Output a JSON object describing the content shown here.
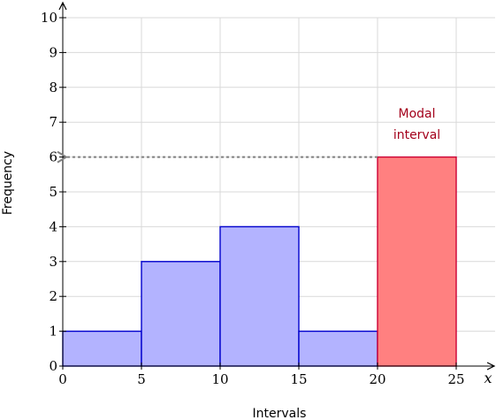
{
  "chart_data": {
    "type": "bar",
    "title": "",
    "xlabel": "Intervals",
    "ylabel": "Frequency",
    "x_axis_symbol": "x",
    "xlim": [
      0,
      25
    ],
    "ylim": [
      0,
      10
    ],
    "grid": true,
    "x_ticks": [
      "0",
      "5",
      "10",
      "15",
      "20",
      "25"
    ],
    "y_ticks": [
      "0",
      "1",
      "2",
      "3",
      "4",
      "5",
      "6",
      "7",
      "8",
      "9",
      "10"
    ],
    "bins": [
      {
        "start": 0,
        "end": 5,
        "value": 1,
        "highlight": false
      },
      {
        "start": 5,
        "end": 10,
        "value": 3,
        "highlight": false
      },
      {
        "start": 10,
        "end": 15,
        "value": 4,
        "highlight": false
      },
      {
        "start": 15,
        "end": 20,
        "value": 1,
        "highlight": false
      },
      {
        "start": 20,
        "end": 25,
        "value": 6,
        "highlight": true
      }
    ],
    "annotation": {
      "lines": [
        "Modal",
        "interval"
      ],
      "points_to_bin": 4,
      "arrow_to_y": 6
    },
    "colors": {
      "bar_fill": "#b3b3ff",
      "bar_stroke": "#0000cc",
      "highlight_fill": "#ff8080",
      "highlight_stroke": "#cc0033",
      "annotation_text": "#a3001b",
      "arrow": "#808080",
      "grid": "#d9d9d9"
    }
  }
}
